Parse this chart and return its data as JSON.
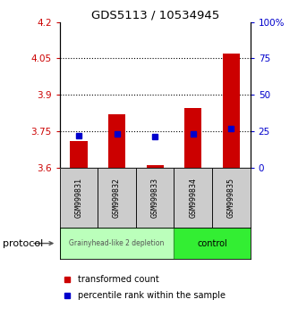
{
  "title": "GDS5113 / 10534945",
  "samples": [
    "GSM999831",
    "GSM999832",
    "GSM999833",
    "GSM999834",
    "GSM999835"
  ],
  "transformed_counts": [
    3.71,
    3.82,
    3.61,
    3.845,
    4.07
  ],
  "percentile_ranks": [
    22,
    23,
    21,
    23,
    27
  ],
  "ylim_left": [
    3.6,
    4.2
  ],
  "ylim_right": [
    0,
    100
  ],
  "yticks_left": [
    3.6,
    3.75,
    3.9,
    4.05,
    4.2
  ],
  "ytick_labels_left": [
    "3.6",
    "3.75",
    "3.9",
    "4.05",
    "4.2"
  ],
  "yticks_right": [
    0,
    25,
    50,
    75,
    100
  ],
  "ytick_labels_right": [
    "0",
    "25",
    "50",
    "75",
    "100%"
  ],
  "hlines": [
    3.75,
    3.9,
    4.05
  ],
  "bar_color": "#cc0000",
  "dot_color": "#0000cc",
  "bar_width": 0.45,
  "group1_label": "Grainyhead-like 2 depletion",
  "group1_color": "#bbffbb",
  "group2_label": "control",
  "group2_color": "#33ee33",
  "protocol_label": "protocol",
  "legend_bar_label": "transformed count",
  "legend_dot_label": "percentile rank within the sample",
  "left_tick_color": "#cc0000",
  "right_tick_color": "#0000cc",
  "sample_box_color": "#cccccc",
  "background_color": "#ffffff"
}
